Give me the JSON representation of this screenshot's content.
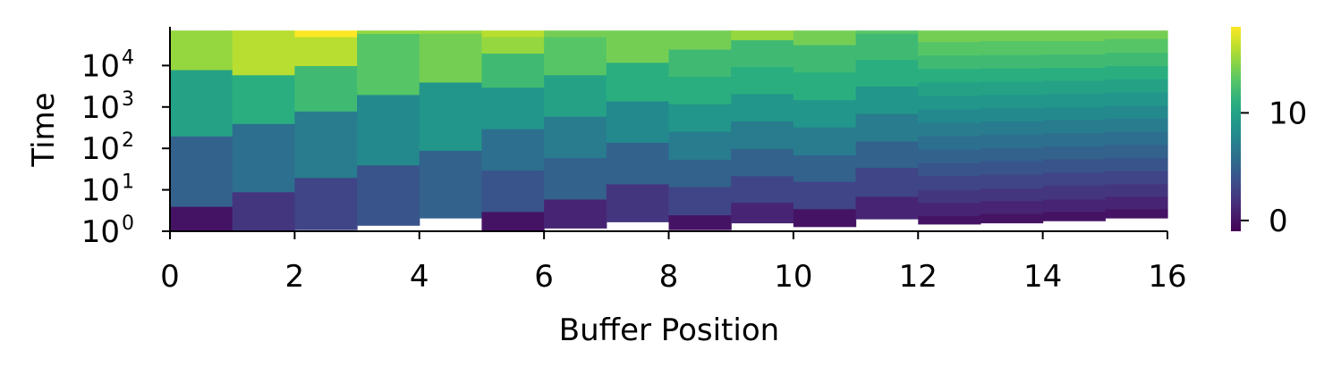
{
  "chart_data": {
    "type": "heatmap",
    "title": "",
    "xlabel": "Buffer Position",
    "ylabel": "Time",
    "x_ticks": [
      "0",
      "2",
      "4",
      "6",
      "8",
      "10",
      "12",
      "14",
      "16"
    ],
    "x_tick_values": [
      0,
      2,
      4,
      6,
      8,
      10,
      12,
      14,
      16
    ],
    "xlim": [
      0,
      16
    ],
    "y_scale": "log",
    "y_ticks": [
      {
        "base": "10",
        "exp": "0",
        "value": 1
      },
      {
        "base": "10",
        "exp": "1",
        "value": 10
      },
      {
        "base": "10",
        "exp": "2",
        "value": 100
      },
      {
        "base": "10",
        "exp": "3",
        "value": 1000
      },
      {
        "base": "10",
        "exp": "4",
        "value": 10000
      }
    ],
    "ylim": [
      1,
      70000
    ],
    "colormap": "viridis",
    "colorbar": {
      "min": -1,
      "max": 18,
      "ticks": [
        "0",
        "10"
      ],
      "tick_values": [
        0,
        10
      ]
    },
    "columns": [
      {
        "x": 0,
        "start": 1.0,
        "end": 70000,
        "edges": [
          1.0,
          4,
          200,
          8000,
          70000
        ],
        "values": [
          0,
          5,
          10,
          15
        ]
      },
      {
        "x": 1,
        "start": 1.0,
        "end": 70000,
        "edges": [
          1.0,
          9,
          400,
          6000,
          70000
        ],
        "values": [
          2,
          6,
          11,
          16
        ]
      },
      {
        "x": 2,
        "start": 1.1,
        "end": 70000,
        "edges": [
          1.1,
          20,
          800,
          10000,
          50000,
          70000
        ],
        "values": [
          3,
          7,
          12,
          16,
          18
        ]
      },
      {
        "x": 3,
        "start": 1.4,
        "end": 70000,
        "edges": [
          1.4,
          40,
          2000,
          60000,
          70000
        ],
        "values": [
          4,
          8,
          13,
          15
        ]
      },
      {
        "x": 4,
        "start": 2.1,
        "end": 70000,
        "edges": [
          2.1,
          90,
          4000,
          60000,
          70000
        ],
        "values": [
          5,
          9,
          14,
          15
        ]
      },
      {
        "x": 5,
        "start": 1.0,
        "end": 70000,
        "edges": [
          1.0,
          3,
          30,
          300,
          3000,
          20000,
          50000,
          70000
        ],
        "values": [
          0,
          4,
          6,
          9,
          12,
          15,
          16
        ]
      },
      {
        "x": 6,
        "start": 1.2,
        "end": 70000,
        "edges": [
          1.2,
          6,
          60,
          600,
          6000,
          50000,
          70000
        ],
        "values": [
          1,
          5,
          7,
          10,
          13,
          14
        ]
      },
      {
        "x": 7,
        "start": 1.7,
        "end": 70000,
        "edges": [
          1.7,
          14,
          140,
          1400,
          12000,
          70000
        ],
        "values": [
          2,
          5,
          8,
          11,
          14
        ]
      },
      {
        "x": 8,
        "start": 1.1,
        "end": 70000,
        "edges": [
          1.1,
          2.5,
          12,
          55,
          260,
          1200,
          5500,
          25000,
          70000
        ],
        "values": [
          0,
          3,
          5,
          7,
          9,
          11,
          12,
          14
        ]
      },
      {
        "x": 9,
        "start": 1.6,
        "end": 70000,
        "edges": [
          1.6,
          5,
          22,
          100,
          460,
          2100,
          9500,
          42000,
          70000
        ],
        "values": [
          1,
          3,
          5,
          7,
          9,
          11,
          12,
          15
        ]
      },
      {
        "x": 10,
        "start": 1.3,
        "end": 70000,
        "edges": [
          1.3,
          3.5,
          16,
          70,
          330,
          1500,
          7000,
          32000,
          70000
        ],
        "values": [
          0,
          3,
          5,
          7,
          9,
          11,
          12,
          14
        ]
      },
      {
        "x": 11,
        "start": 2.0,
        "end": 70000,
        "edges": [
          2.0,
          7,
          35,
          150,
          700,
          3200,
          14000,
          60000,
          70000
        ],
        "values": [
          1,
          3,
          5,
          7,
          9,
          11,
          12,
          13
        ]
      },
      {
        "x": 12,
        "start": 1.5,
        "end": 70000,
        "edges": [
          1.5,
          2.4,
          5,
          10,
          22,
          45,
          95,
          200,
          420,
          900,
          1900,
          4000,
          8500,
          18000,
          38000,
          70000
        ],
        "values": [
          0,
          1,
          2,
          3,
          4,
          5,
          6,
          7,
          8,
          9,
          10,
          11,
          12,
          13,
          14
        ]
      },
      {
        "x": 13,
        "start": 1.6,
        "end": 70000,
        "edges": [
          1.6,
          2.7,
          5.5,
          11,
          24,
          50,
          105,
          220,
          460,
          950,
          2000,
          4200,
          8800,
          18500,
          40000,
          70000
        ],
        "values": [
          0,
          1,
          2,
          3,
          4,
          5,
          6,
          7,
          8,
          9,
          10,
          11,
          12,
          13,
          14
        ]
      },
      {
        "x": 14,
        "start": 1.8,
        "end": 70000,
        "edges": [
          1.8,
          3,
          6,
          13,
          27,
          56,
          115,
          240,
          500,
          1000,
          2100,
          4400,
          9000,
          19000,
          40000,
          70000
        ],
        "values": [
          0,
          1,
          2,
          3,
          4,
          5,
          6,
          7,
          8,
          9,
          10,
          11,
          12,
          13,
          14
        ]
      },
      {
        "x": 15,
        "start": 2.1,
        "end": 70000,
        "edges": [
          2.1,
          3.5,
          7,
          14,
          29,
          60,
          125,
          260,
          540,
          1100,
          2300,
          4800,
          10000,
          21000,
          45000,
          70000
        ],
        "values": [
          0,
          1,
          2,
          3,
          4,
          5,
          6,
          7,
          8,
          9,
          10,
          11,
          12,
          13,
          14
        ]
      }
    ]
  }
}
